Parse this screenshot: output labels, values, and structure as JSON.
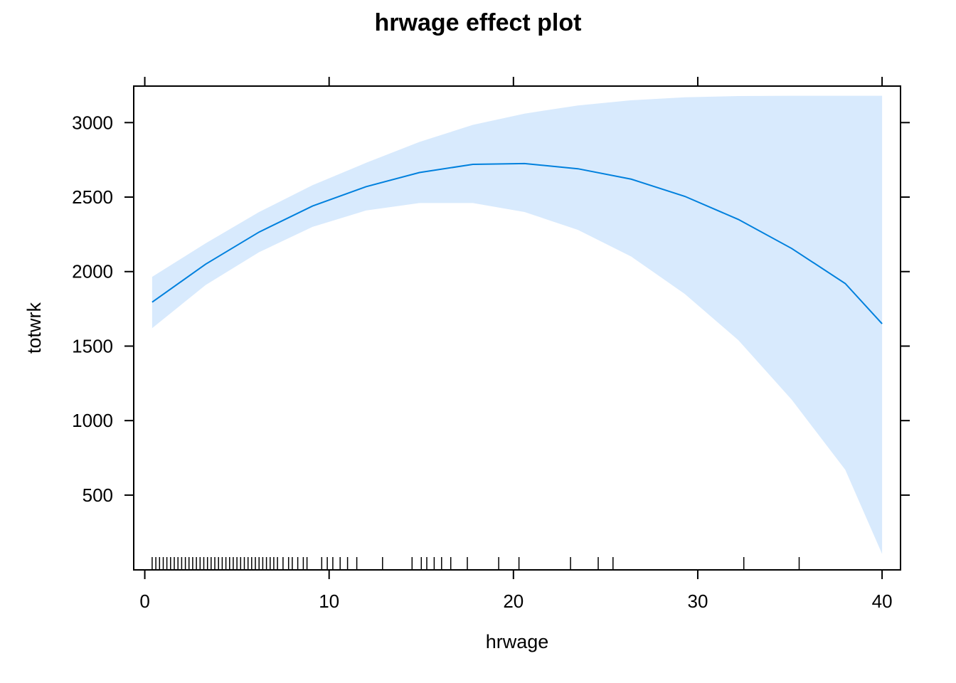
{
  "chart_data": {
    "type": "line",
    "title": "hrwage effect plot",
    "xlabel": "hrwage",
    "ylabel": "totwrk",
    "xlim": [
      -0.6,
      41.0
    ],
    "ylim": [
      -1.8,
      3245
    ],
    "x_ticks": [
      0,
      10,
      20,
      30,
      40
    ],
    "y_ticks": [
      500,
      1000,
      1500,
      2000,
      2500,
      3000
    ],
    "x_tick_labels": [
      "0",
      "10",
      "20",
      "30",
      "40"
    ],
    "y_tick_labels": [
      "500",
      "1000",
      "1500",
      "2000",
      "2500",
      "3000"
    ],
    "grid": false,
    "legend": "none",
    "colors": {
      "line": "#0080dd",
      "band": "#d8eafd",
      "axis": "#000000"
    },
    "series": [
      {
        "x": [
          0.4,
          3.3,
          6.2,
          9.1,
          12.0,
          14.9,
          17.8,
          20.6,
          23.5,
          26.4,
          29.3,
          32.2,
          35.1,
          38.0,
          40.0
        ],
        "fit": [
          1795,
          2050,
          2265,
          2440,
          2570,
          2665,
          2720,
          2725,
          2690,
          2620,
          2505,
          2350,
          2155,
          1920,
          1650
        ],
        "lower": [
          1620,
          1910,
          2130,
          2300,
          2410,
          2460,
          2460,
          2400,
          2280,
          2100,
          1850,
          1540,
          1140,
          670,
          105
        ],
        "upper": [
          1965,
          2190,
          2400,
          2580,
          2730,
          2870,
          2985,
          3060,
          3115,
          3150,
          3170,
          3178,
          3180,
          3180,
          3180
        ]
      }
    ],
    "rug_x": [
      0.4,
      0.6,
      0.8,
      1.0,
      1.2,
      1.4,
      1.6,
      1.8,
      2.0,
      2.2,
      2.4,
      2.6,
      2.8,
      3.0,
      3.2,
      3.4,
      3.6,
      3.8,
      4.0,
      4.2,
      4.4,
      4.6,
      4.8,
      5.0,
      5.2,
      5.4,
      5.6,
      5.8,
      6.0,
      6.2,
      6.4,
      6.6,
      6.8,
      7.0,
      7.2,
      7.5,
      7.8,
      8.0,
      8.3,
      8.6,
      8.8,
      9.6,
      9.9,
      10.2,
      10.6,
      11.0,
      11.5,
      12.9,
      14.5,
      15.0,
      15.3,
      15.7,
      16.1,
      16.6,
      17.5,
      19.2,
      20.3,
      23.1,
      24.6,
      25.4,
      32.5,
      35.5
    ]
  }
}
